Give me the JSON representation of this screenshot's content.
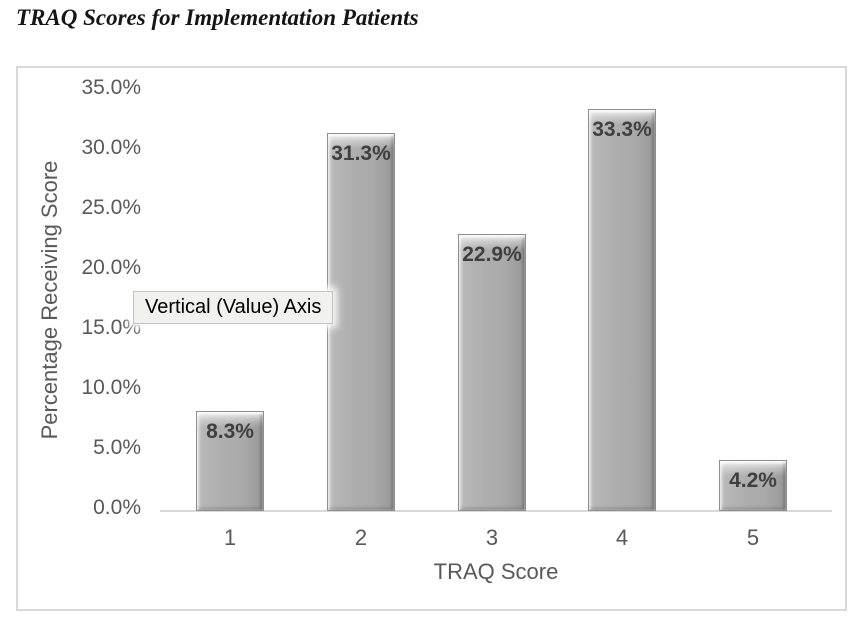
{
  "page_title": "TRAQ Scores for Implementation Patients",
  "tooltip": {
    "label": "Vertical (Value) Axis"
  },
  "colors": {
    "title_text": "#151515",
    "axis_text": "#595959",
    "data_label_text": "#3f3f3f",
    "bar_fill": "#ababab",
    "bar_border": "#8e8e8e",
    "axis_line": "#d9d9d9",
    "frame_border": "#d9d9d9",
    "tooltip_bg": "#f1f1ef",
    "background": "#ffffff"
  },
  "chart_data": {
    "type": "bar",
    "title": "TRAQ Scores for Implementation Patients",
    "categories": [
      "1",
      "2",
      "3",
      "4",
      "5"
    ],
    "values": [
      8.3,
      31.3,
      22.9,
      33.3,
      4.2
    ],
    "value_labels": [
      "8.3%",
      "31.3%",
      "22.9%",
      "33.3%",
      "4.2%"
    ],
    "xlabel": "TRAQ Score",
    "ylabel": "Percentage Receiving Score",
    "ylim": [
      0,
      35
    ],
    "y_ticks": [
      "35.0%",
      "30.0%",
      "25.0%",
      "20.0%",
      "15.0%",
      "10.0%",
      "5.0%",
      "0.0%"
    ],
    "grid": false,
    "legend": false
  }
}
